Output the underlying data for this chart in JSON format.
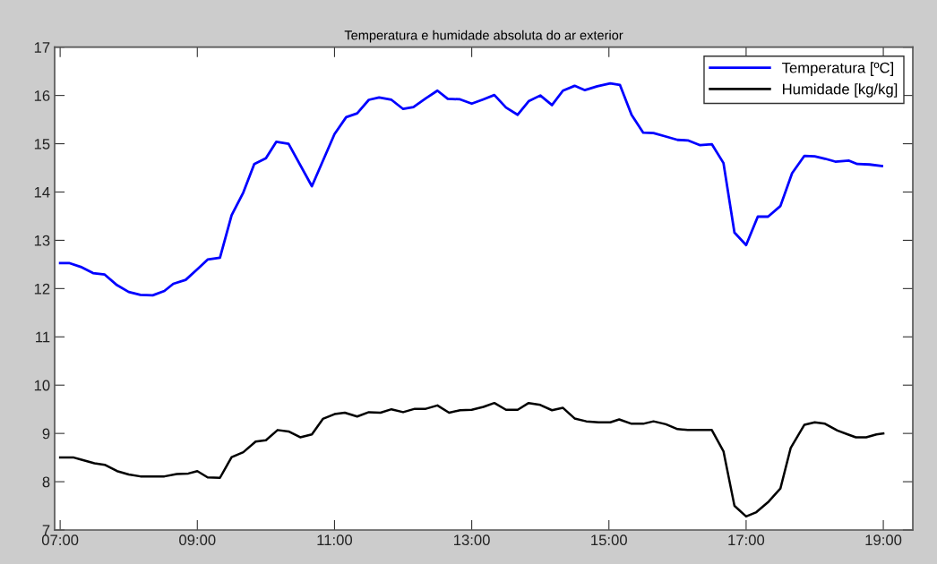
{
  "chart_data": {
    "type": "line",
    "title": "Temperatura e humidade absoluta do ar exterior",
    "xlim": [
      6.92,
      19.43
    ],
    "ylim": [
      7,
      17
    ],
    "xticks": [
      {
        "value": 7,
        "label": "07:00"
      },
      {
        "value": 9,
        "label": "09:00"
      },
      {
        "value": 11,
        "label": "11:00"
      },
      {
        "value": 13,
        "label": "13:00"
      },
      {
        "value": 15,
        "label": "15:00"
      },
      {
        "value": 17,
        "label": "17:00"
      },
      {
        "value": 19,
        "label": "19:00"
      }
    ],
    "yticks": [
      7,
      8,
      9,
      10,
      11,
      12,
      13,
      14,
      15,
      16,
      17
    ],
    "grid": false,
    "legend": "top right",
    "series": [
      {
        "name": "Temperatura [ºC]",
        "color": "#0000ff",
        "x": [
          7.0,
          7.13,
          7.3,
          7.48,
          7.65,
          7.83,
          8.0,
          8.17,
          8.35,
          8.52,
          8.65,
          8.83,
          9.0,
          9.15,
          9.33,
          9.5,
          9.67,
          9.83,
          10.0,
          10.15,
          10.33,
          10.67,
          11.0,
          11.17,
          11.33,
          11.5,
          11.65,
          11.83,
          12.0,
          12.15,
          12.33,
          12.5,
          12.65,
          12.83,
          13.0,
          13.17,
          13.33,
          13.5,
          13.67,
          13.83,
          14.0,
          14.17,
          14.33,
          14.5,
          14.65,
          14.83,
          15.02,
          15.16,
          15.33,
          15.5,
          15.65,
          15.83,
          16.0,
          16.15,
          16.33,
          16.5,
          16.67,
          16.83,
          17.0,
          17.17,
          17.32,
          17.5,
          17.67,
          17.85,
          18.0,
          18.15,
          18.3,
          18.5,
          18.62,
          18.8,
          18.98
        ],
        "values": [
          12.53,
          12.53,
          12.45,
          12.32,
          12.29,
          12.07,
          11.93,
          11.87,
          11.86,
          11.95,
          12.1,
          12.18,
          12.4,
          12.6,
          12.64,
          13.52,
          13.99,
          14.58,
          14.7,
          15.04,
          15.0,
          14.12,
          15.2,
          15.55,
          15.63,
          15.91,
          15.96,
          15.91,
          15.72,
          15.76,
          15.94,
          16.1,
          15.93,
          15.92,
          15.83,
          15.92,
          16.01,
          15.75,
          15.6,
          15.88,
          16.0,
          15.8,
          16.1,
          16.2,
          16.11,
          16.19,
          16.25,
          16.22,
          15.6,
          15.23,
          15.22,
          15.15,
          15.08,
          15.07,
          14.97,
          14.99,
          14.6,
          13.16,
          12.9,
          13.49,
          13.49,
          13.71,
          14.39,
          14.75,
          14.74,
          14.69,
          14.63,
          14.65,
          14.58,
          14.57,
          14.54
        ]
      },
      {
        "name": "Humidade [kg/kg]",
        "color": "#000000",
        "x": [
          7.0,
          7.2,
          7.3,
          7.5,
          7.65,
          7.83,
          8.0,
          8.17,
          8.35,
          8.52,
          8.7,
          8.87,
          9.0,
          9.15,
          9.33,
          9.5,
          9.67,
          9.85,
          10.0,
          10.17,
          10.33,
          10.5,
          10.67,
          10.83,
          11.0,
          11.15,
          11.33,
          11.5,
          11.67,
          11.83,
          12.0,
          12.17,
          12.33,
          12.5,
          12.67,
          12.83,
          13.0,
          13.17,
          13.33,
          13.5,
          13.67,
          13.83,
          14.0,
          14.17,
          14.33,
          14.5,
          14.67,
          14.85,
          15.02,
          15.15,
          15.33,
          15.5,
          15.65,
          15.83,
          16.0,
          16.15,
          16.33,
          16.5,
          16.67,
          16.83,
          17.0,
          17.15,
          17.33,
          17.5,
          17.65,
          17.85,
          18.0,
          18.15,
          18.33,
          18.5,
          18.6,
          18.75,
          18.9,
          19.0
        ],
        "values": [
          8.5,
          8.5,
          8.46,
          8.38,
          8.35,
          8.22,
          8.15,
          8.11,
          8.11,
          8.11,
          8.16,
          8.17,
          8.22,
          8.09,
          8.08,
          8.51,
          8.61,
          8.83,
          8.86,
          9.07,
          9.04,
          8.92,
          8.98,
          9.3,
          9.4,
          9.43,
          9.35,
          9.44,
          9.43,
          9.5,
          9.44,
          9.51,
          9.51,
          9.58,
          9.43,
          9.48,
          9.49,
          9.55,
          9.63,
          9.49,
          9.49,
          9.63,
          9.59,
          9.48,
          9.53,
          9.31,
          9.25,
          9.23,
          9.23,
          9.29,
          9.2,
          9.2,
          9.25,
          9.19,
          9.09,
          9.07,
          9.07,
          9.07,
          8.63,
          7.5,
          7.28,
          7.37,
          7.59,
          7.86,
          8.7,
          9.18,
          9.23,
          9.2,
          9.06,
          8.97,
          8.92,
          8.92,
          8.98,
          9.0
        ]
      }
    ]
  }
}
